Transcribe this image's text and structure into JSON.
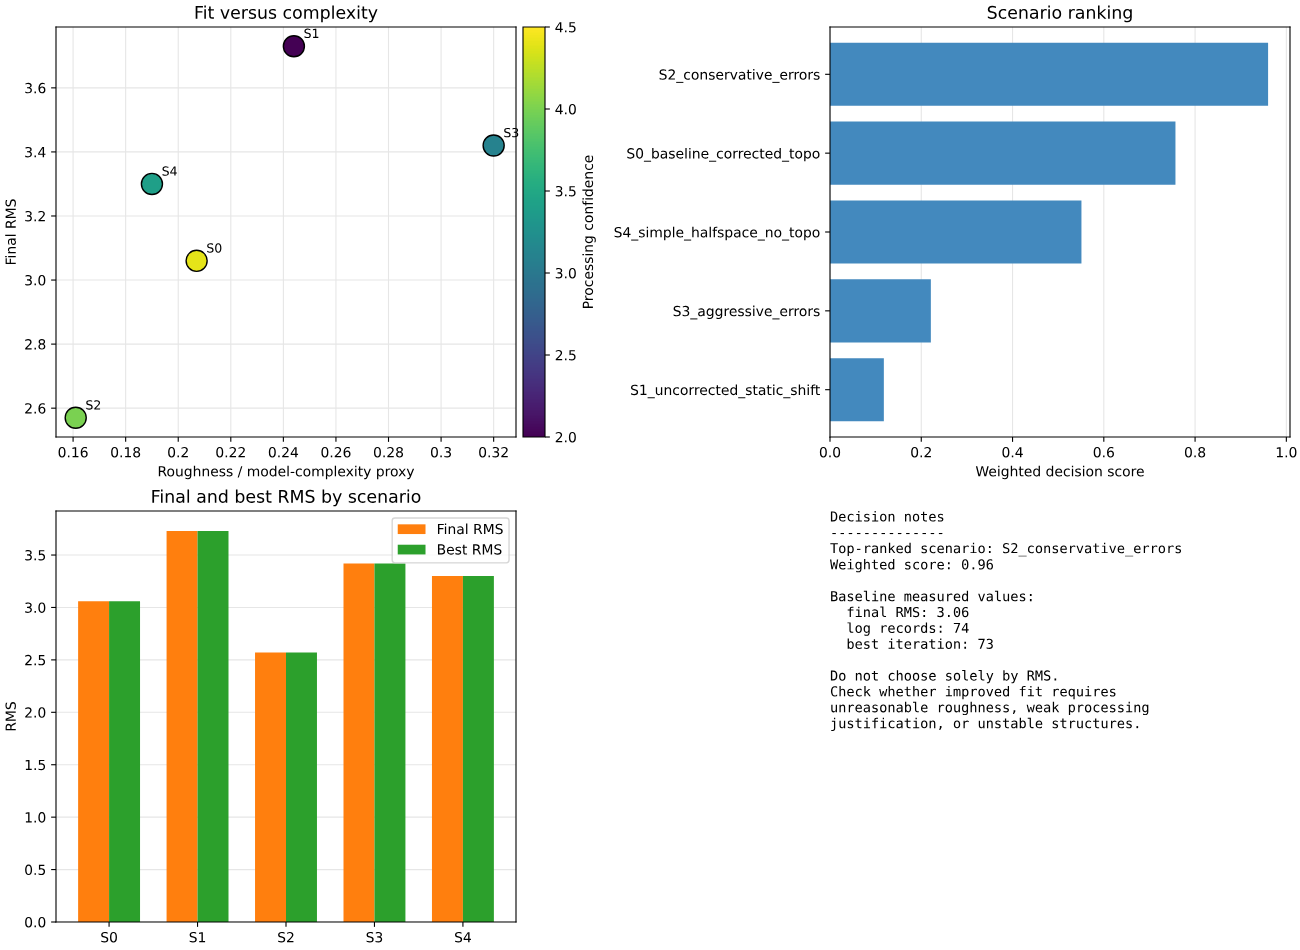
{
  "chart_data": [
    {
      "type": "scatter",
      "title": "Fit versus complexity",
      "xlabel": "Roughness / model-complexity proxy",
      "ylabel": "Final RMS",
      "clabel": "Processing confidence",
      "x": [
        0.207,
        0.244,
        0.161,
        0.32,
        0.19
      ],
      "values": [
        3.06,
        3.73,
        2.57,
        3.42,
        3.3
      ],
      "cvalues": [
        4.4,
        2.0,
        4.0,
        3.1,
        3.4
      ],
      "clim": [
        2.0,
        4.5
      ],
      "cticks": [
        {
          "value": 2,
          "label": "2.0"
        },
        2.5,
        {
          "value": 3,
          "label": "3.0"
        },
        3.5,
        {
          "value": 4,
          "label": "4.0"
        },
        4.5
      ],
      "xlim": [
        0.1535,
        0.3285
      ],
      "xticks": [
        0.16,
        0.18,
        0.2,
        0.22,
        0.24,
        0.26,
        0.28,
        0.3,
        0.32
      ],
      "ylim": [
        2.51,
        3.79
      ],
      "yticks": [
        2.6,
        2.8,
        {
          "value": 3,
          "label": "3.0"
        },
        3.2,
        3.4,
        3.6
      ],
      "marker": "circle",
      "grid": true,
      "annotations": [
        {
          "text": "S0",
          "x": 0.207,
          "y": 3.06
        },
        {
          "text": "S1",
          "x": 0.244,
          "y": 3.73
        },
        {
          "text": "S2",
          "x": 0.161,
          "y": 2.57
        },
        {
          "text": "S3",
          "x": 0.32,
          "y": 3.42
        },
        {
          "text": "S4",
          "x": 0.19,
          "y": 3.3
        }
      ]
    },
    {
      "type": "bar",
      "orientation": "horizontal",
      "title": "Scenario ranking",
      "xlabel": "Weighted decision score",
      "categories": [
        "S2_conservative_errors",
        "S0_baseline_corrected_topo",
        "S4_simple_halfspace_no_topo",
        "S3_aggressive_errors",
        "S1_uncorrected_static_shift"
      ],
      "values": [
        0.96,
        0.757,
        0.551,
        0.221,
        0.118
      ],
      "color": "#4389be",
      "xlim": [
        0,
        1.008
      ],
      "xticks": [
        {
          "value": 0,
          "label": "0.0"
        },
        0.2,
        0.4,
        0.6,
        0.8,
        {
          "value": 1,
          "label": "1.0"
        }
      ],
      "grid": "x"
    },
    {
      "type": "bar",
      "title": "Final and best RMS by scenario",
      "ylabel": "RMS",
      "categories": [
        "S0",
        "S1",
        "S2",
        "S3",
        "S4"
      ],
      "series": [
        {
          "name": "Final RMS",
          "color": "#ff7f0e",
          "values": [
            3.06,
            3.73,
            2.57,
            3.42,
            3.3
          ]
        },
        {
          "name": "Best RMS",
          "color": "#2ca02c",
          "values": [
            3.06,
            3.73,
            2.57,
            3.42,
            3.3
          ]
        }
      ],
      "ylim": [
        0,
        3.92
      ],
      "yticks": [
        {
          "value": 0,
          "label": "0.0"
        },
        0.5,
        {
          "value": 1,
          "label": "1.0"
        },
        1.5,
        {
          "value": 2,
          "label": "2.0"
        },
        2.5,
        {
          "value": 3,
          "label": "3.0"
        },
        3.5
      ],
      "grid": "y",
      "legend": "top right"
    },
    {
      "type": "other",
      "annotations": [
        "Decision notes\n--------------\nTop-ranked scenario: S2_conservative_errors\nWeighted score: 0.96",
        "Baseline measured values:\n  final RMS: 3.06\n  log records: 74\n  best iteration: 73",
        "Do not choose solely by RMS.\nCheck whether improved fit requires\nunreasonable roughness, weak processing\njustification, or unstable structures."
      ]
    }
  ]
}
